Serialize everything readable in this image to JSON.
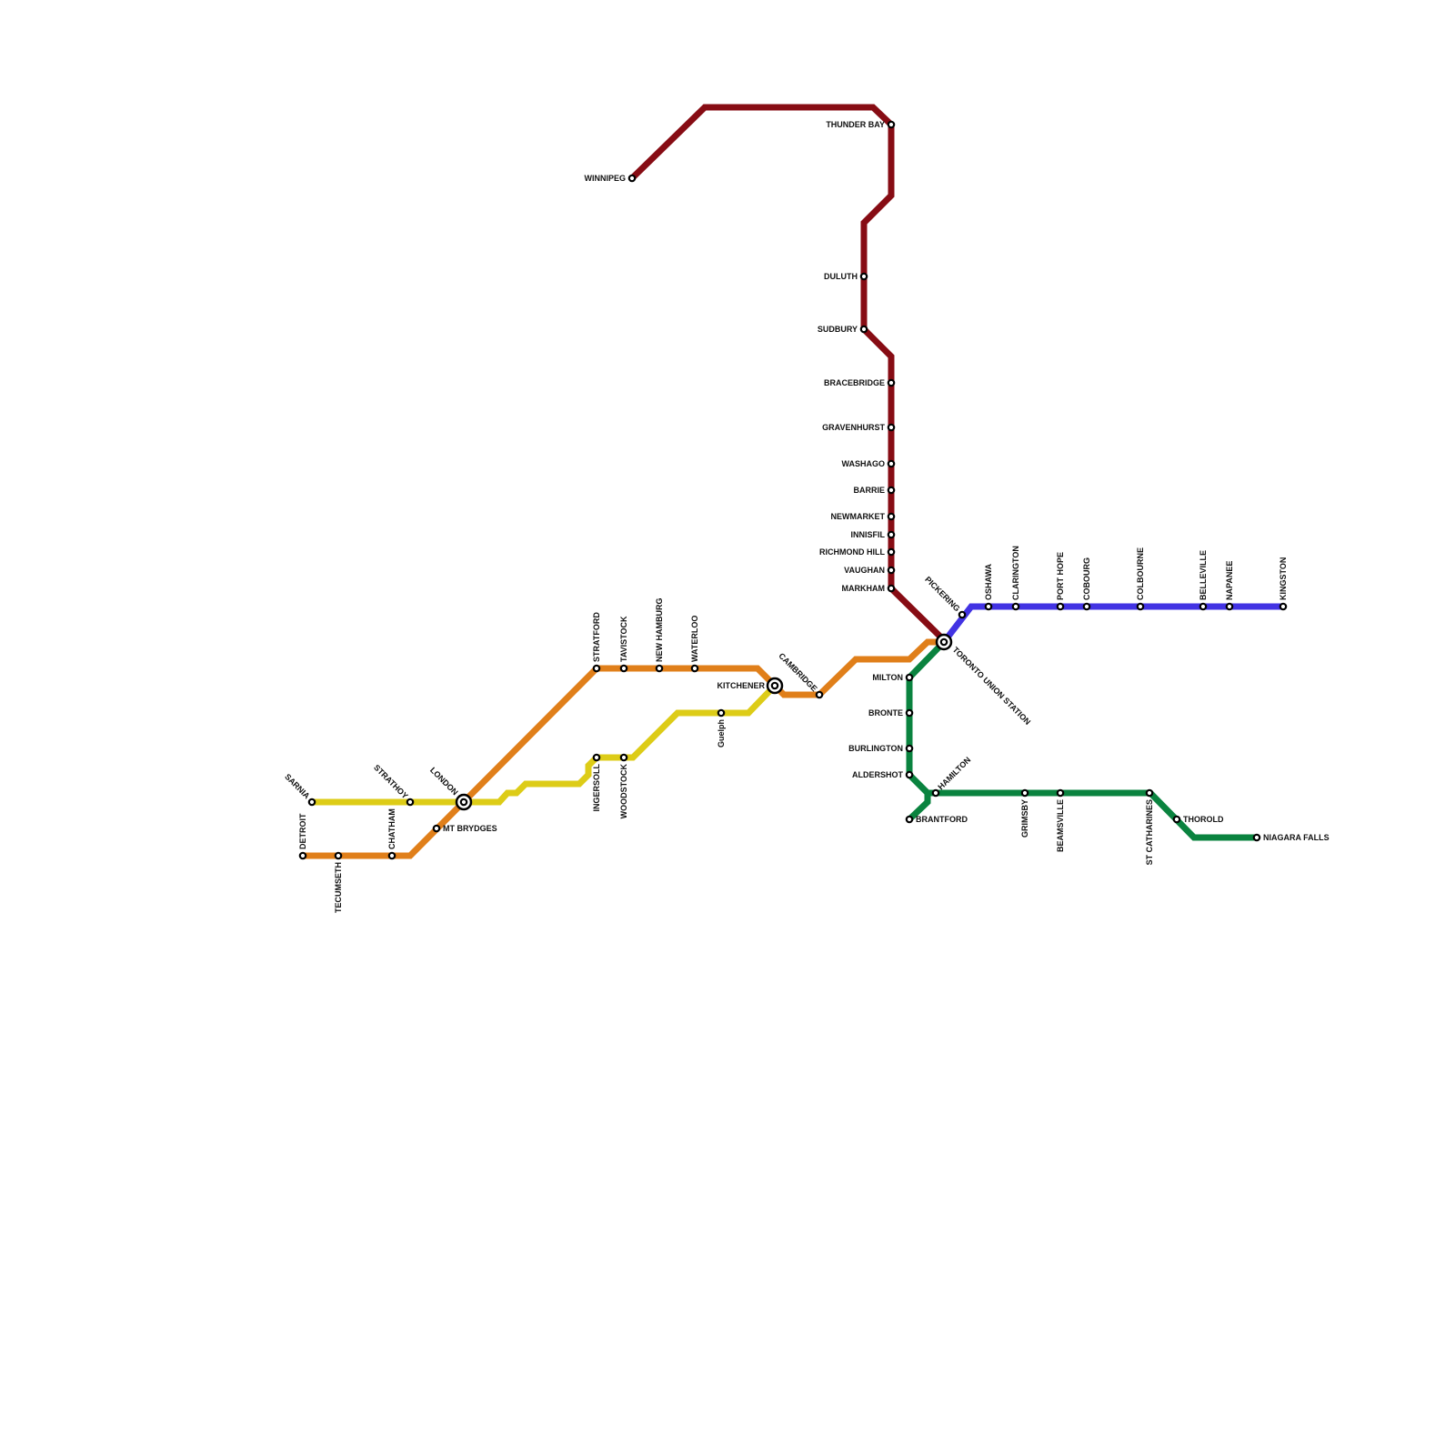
{
  "lines": [
    {
      "id": "red",
      "color": "#870C14",
      "stations": [
        "WINNIPEG",
        "THUNDER BAY",
        "DULUTH",
        "SUDBURY",
        "BRACEBRIDGE",
        "GRAVENHURST",
        "WASHAGO",
        "BARRIE",
        "NEWMARKET",
        "INNISFIL",
        "RICHMOND HILL",
        "VAUGHAN",
        "MARKHAM"
      ]
    },
    {
      "id": "blue",
      "color": "#4233E3",
      "stations": [
        "PICKERING",
        "OSHAWA",
        "CLARINGTON",
        "PORT HOPE",
        "COBOURG",
        "COLBOURNE",
        "BELLEVILLE",
        "NAPANEE",
        "KINGSTON"
      ]
    },
    {
      "id": "orange",
      "color": "#E07F1A",
      "stations": [
        "DETROIT",
        "TECUMSETH",
        "CHATHAM",
        "MT BRYDGES",
        "STRATFORD",
        "TAVISTOCK",
        "NEW HAMBURG",
        "WATERLOO",
        "CAMBRIDGE"
      ]
    },
    {
      "id": "yellow",
      "color": "#DDCC17",
      "stations": [
        "SARNIA",
        "STRATHOY",
        "INGERSOLL",
        "WOODSTOCK",
        "Guelph"
      ]
    },
    {
      "id": "green",
      "color": "#0A833F",
      "stations": [
        "MILTON",
        "BRONTE",
        "BURLINGTON",
        "ALDERSHOT",
        "HAMILTON",
        "BRANTFORD",
        "GRIMSBY",
        "BEAMSVILLE",
        "ST CATHARINES",
        "THOROLD",
        "NIAGARA FALLS"
      ]
    }
  ],
  "interchanges": [
    "LONDON",
    "KITCHENER",
    "TORONTO UNION STATION"
  ]
}
